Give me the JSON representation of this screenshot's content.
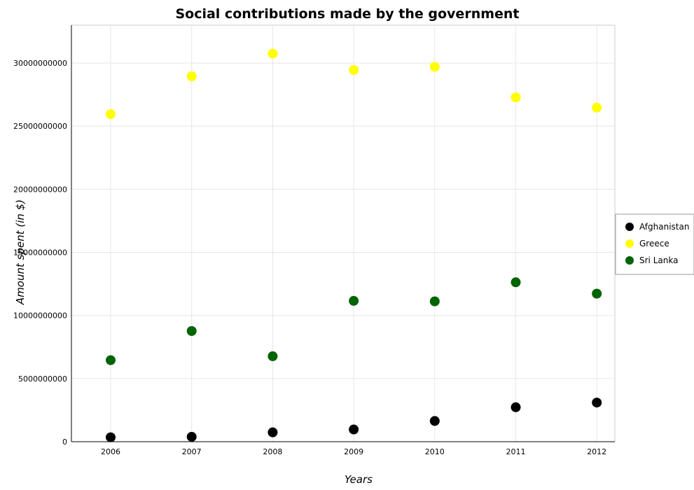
{
  "chart_data": {
    "type": "scatter",
    "title": "Social contributions made by the government",
    "xlabel": "Years",
    "ylabel": "Amount spent (in $)",
    "x": [
      "2006",
      "2007",
      "2008",
      "2009",
      "2010",
      "2011",
      "2012"
    ],
    "ylim": [
      0,
      33000000000
    ],
    "yticks": [
      0,
      5000000000,
      10000000000,
      15000000000,
      20000000000,
      25000000000,
      30000000000
    ],
    "ytick_labels": [
      "0",
      "5000000000",
      "10000000000",
      "15000000000",
      "20000000000",
      "25000000000",
      "30000000000"
    ],
    "grid": true,
    "legend_position": "right",
    "series": [
      {
        "name": "Afghanistan",
        "color": "#000000",
        "values": [
          350000000,
          390000000,
          740000000,
          970000000,
          1640000000,
          2730000000,
          3100000000
        ]
      },
      {
        "name": "Greece",
        "color": "#ffff00",
        "values": [
          25950000000,
          28950000000,
          30750000000,
          29450000000,
          29700000000,
          27280000000,
          26470000000
        ]
      },
      {
        "name": "Sri Lanka",
        "color": "#006400",
        "values": [
          6460000000,
          8770000000,
          6770000000,
          11160000000,
          11120000000,
          12630000000,
          11730000000
        ]
      }
    ]
  }
}
